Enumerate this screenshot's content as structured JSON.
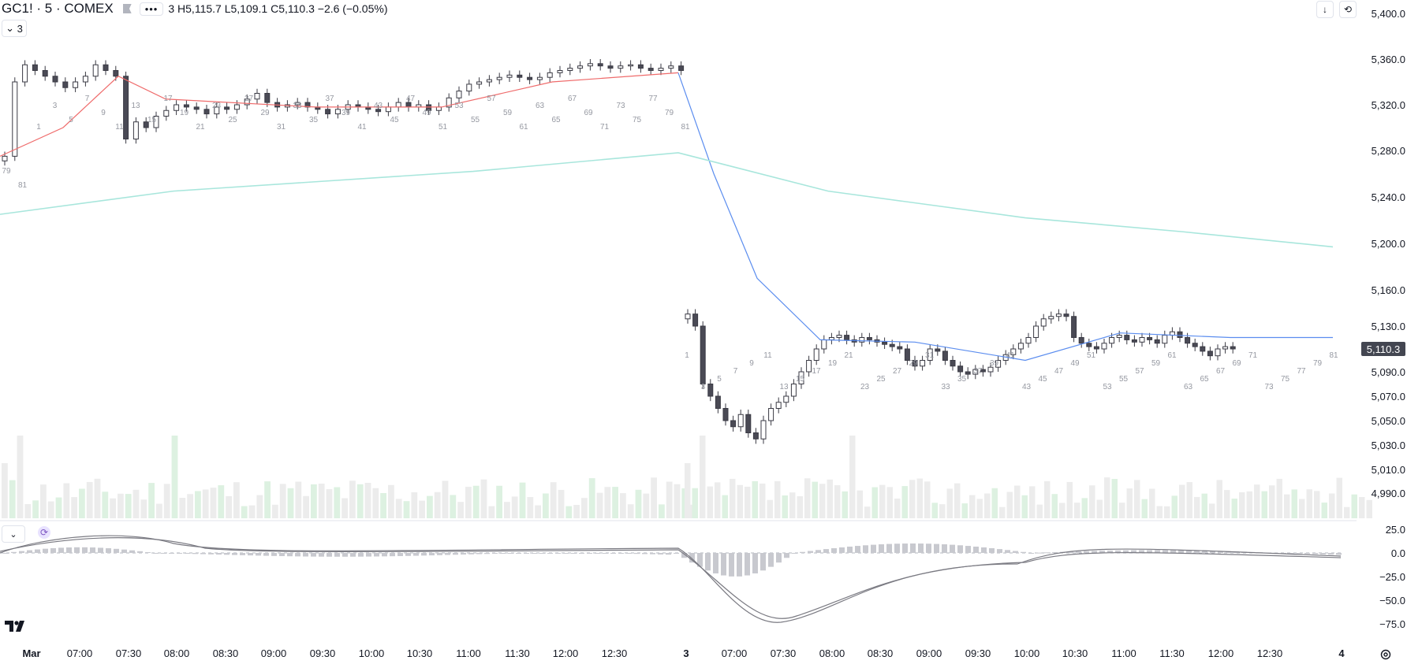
{
  "legend": {
    "symbol": "GC1! · 5 · COMEX",
    "more": "•••",
    "ohlc_tail": "3",
    "high": "H5,115.7",
    "low": "L5,109.1",
    "close": "C5,110.3",
    "change": "−2.6 (−0.05%)"
  },
  "controls": {
    "collapse_label": "3"
  },
  "last_price": "5,110.3",
  "colors": {
    "candle_up_fill": "#ffffff",
    "candle_down_fill": "#4a4a55",
    "candle_outline": "#3a3a44",
    "volume": "#ececec",
    "volume_green": "#ddf1e1",
    "ma_fast_up": "#ef6b6b",
    "ma_fast_down": "#5b8def",
    "ma_slow": "#a8e6dc",
    "macd_hist": "#c8c9cf",
    "macd_line": "#7a7a82",
    "grid": "#ffffff"
  },
  "chart_data": {
    "type": "candlestick",
    "price_axis": [
      "5,400.0",
      "5,360.0",
      "5,320.0",
      "5,280.0",
      "5,240.0",
      "5,200.0",
      "5,160.0",
      "5,130.0",
      "5,090.0",
      "5,070.0",
      "5,050.0",
      "5,030.0",
      "5,010.0",
      "4,990.0"
    ],
    "macd_axis": [
      "25.0",
      "0.0",
      "−25.0",
      "−50.0",
      "−75.0"
    ],
    "time_axis": [
      "Mar",
      "07:00",
      "07:30",
      "08:00",
      "08:30",
      "09:00",
      "09:30",
      "10:00",
      "10:30",
      "11:00",
      "11:30",
      "12:00",
      "12:30",
      "3",
      "07:00",
      "07:30",
      "08:00",
      "08:30",
      "09:00",
      "09:30",
      "10:00",
      "10:30",
      "11:00",
      "11:30",
      "12:00",
      "12:30",
      "4"
    ],
    "bar_numbers_day1": [
      "79",
      "81",
      "1",
      "3",
      "5",
      "7",
      "9",
      "11",
      "13",
      "15",
      "17",
      "19",
      "21",
      "23",
      "25",
      "27",
      "29",
      "31",
      "33",
      "35",
      "37",
      "39",
      "41",
      "43",
      "45",
      "47",
      "49",
      "51",
      "53",
      "55",
      "57",
      "59",
      "61",
      "63",
      "65",
      "67",
      "69",
      "71",
      "73",
      "75",
      "77",
      "79",
      "81"
    ],
    "bar_numbers_day2": [
      "1",
      "3",
      "5",
      "7",
      "9",
      "11",
      "13",
      "15",
      "17",
      "19",
      "21",
      "23",
      "25",
      "27",
      "29",
      "31",
      "33",
      "35",
      "37",
      "39",
      "41",
      "43",
      "45",
      "47",
      "49",
      "51",
      "53",
      "55",
      "57",
      "59",
      "61",
      "63",
      "65",
      "67",
      "69",
      "71",
      "73",
      "75",
      "77",
      "79",
      "81"
    ],
    "day1_close": [
      5275,
      5340,
      5355,
      5350,
      5345,
      5340,
      5335,
      5340,
      5345,
      5355,
      5350,
      5345,
      5290,
      5305,
      5300,
      5310,
      5315,
      5320,
      5318,
      5316,
      5312,
      5318,
      5316,
      5320,
      5325,
      5330,
      5322,
      5318,
      5320,
      5322,
      5318,
      5316,
      5312,
      5316,
      5320,
      5318,
      5316,
      5314,
      5318,
      5322,
      5318,
      5320,
      5315,
      5318,
      5326,
      5332,
      5338,
      5340,
      5342,
      5344,
      5346,
      5344,
      5342,
      5344,
      5348,
      5350,
      5352,
      5354,
      5356,
      5354,
      5352,
      5354,
      5355,
      5352,
      5350,
      5352,
      5354,
      5350
    ],
    "day2_close": [
      5140,
      5130,
      5080,
      5070,
      5060,
      5050,
      5045,
      5055,
      5040,
      5035,
      5050,
      5060,
      5065,
      5070,
      5080,
      5090,
      5100,
      5110,
      5118,
      5120,
      5122,
      5118,
      5116,
      5120,
      5118,
      5116,
      5114,
      5112,
      5110,
      5100,
      5095,
      5100,
      5110,
      5108,
      5100,
      5095,
      5090,
      5088,
      5092,
      5090,
      5094,
      5100,
      5105,
      5110,
      5115,
      5120,
      5130,
      5136,
      5138,
      5140,
      5138,
      5120,
      5115,
      5112,
      5110,
      5115,
      5120,
      5122,
      5118,
      5116,
      5120,
      5118,
      5115,
      5122,
      5125,
      5120,
      5115,
      5112,
      5108,
      5104,
      5110,
      5112,
      5110
    ],
    "ma_fast": {
      "start": 5275,
      "peak_day1": 5345,
      "end_day1": 5348,
      "trough_day2": 5118,
      "end_day2": 5120
    },
    "ma_slow": {
      "start": 5225,
      "peak": 5278,
      "end": 5197
    }
  }
}
